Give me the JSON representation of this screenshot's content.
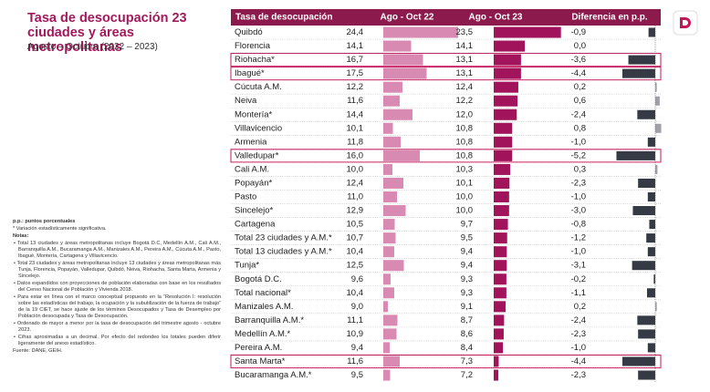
{
  "header": {
    "title": "Tasa de desocupación 23 ciudades y áreas metropolitanas",
    "subtitle": "Agosto – Octubre (2022 – 2023)"
  },
  "table": {
    "first_column": "Tasa de desocupación",
    "categories": [
      "Quibdó",
      "Florencia",
      "Riohacha*",
      "Ibagué*",
      "Cúcuta A.M.",
      "Neiva",
      "Montería*",
      "Villavicencio",
      "Armenia",
      "Valledupar*",
      "Cali A.M.",
      "Popayán*",
      "Pasto",
      "Sincelejo*",
      "Cartagena",
      "Total 23 ciudades y A.M.*",
      "Total 13 ciudades y A.M.*",
      "Tunja*",
      "Bogotá D.C.",
      "Total nacional*",
      "Manizales A.M.",
      "Barranquilla A.M.*",
      "Medellín A.M.*",
      "Pereira A.M.",
      "Santa Marta*",
      "Bucaramanga A.M.*"
    ],
    "highlighted": [
      false,
      false,
      true,
      true,
      false,
      false,
      false,
      false,
      false,
      true,
      false,
      false,
      false,
      false,
      false,
      false,
      false,
      false,
      false,
      false,
      false,
      false,
      false,
      false,
      true,
      false
    ],
    "series": [
      {
        "name": "Ago - Oct 22",
        "color": "#d98ab2",
        "xlim": [
          8,
          25
        ],
        "values": [
          24.4,
          14.1,
          16.7,
          17.5,
          12.2,
          11.6,
          14.4,
          10.1,
          11.8,
          16.0,
          10.0,
          12.4,
          11.0,
          12.9,
          10.5,
          10.7,
          10.4,
          12.5,
          9.6,
          10.4,
          9.0,
          11.1,
          10.9,
          9.4,
          11.6,
          9.5
        ],
        "value_labels": [
          "24,4",
          "14,1",
          "16,7",
          "17,5",
          "12,2",
          "11,6",
          "14,4",
          "10,1",
          "11,8",
          "16,0",
          "10,0",
          "12,4",
          "11,0",
          "12,9",
          "10,5",
          "10,7",
          "10,4",
          "12,5",
          "9,6",
          "10,4",
          "9,0",
          "11,1",
          "10,9",
          "9,4",
          "11,6",
          "9,5"
        ]
      },
      {
        "name": "Ago - Oct 23",
        "color": "#a1145c",
        "xlim": [
          6,
          25
        ],
        "values": [
          23.5,
          14.1,
          13.1,
          13.1,
          12.4,
          12.2,
          12.0,
          10.8,
          10.8,
          10.8,
          10.3,
          10.1,
          10.0,
          10.0,
          9.7,
          9.5,
          9.4,
          9.4,
          9.3,
          9.3,
          9.1,
          8.7,
          8.6,
          8.4,
          7.3,
          7.2
        ],
        "value_labels": [
          "23,5",
          "14,1",
          "13,1",
          "13,1",
          "12,4",
          "12,2",
          "12,0",
          "10,8",
          "10,8",
          "10,8",
          "10,3",
          "10,1",
          "10,0",
          "10,0",
          "9,7",
          "9,5",
          "9,4",
          "9,4",
          "9,3",
          "9,3",
          "9,1",
          "8,7",
          "8,6",
          "8,4",
          "7,3",
          "7,2"
        ]
      },
      {
        "name": "Diferencia en p.p.",
        "color": "#353a45",
        "positive_color": "#a0a0a8",
        "xlim": [
          -5.5,
          0.8
        ],
        "values": [
          -0.9,
          0.0,
          -3.6,
          -4.4,
          0.2,
          0.6,
          -2.4,
          0.8,
          -1.0,
          -5.2,
          0.3,
          -2.3,
          -1.0,
          -3.0,
          -0.8,
          -1.2,
          -1.0,
          -3.1,
          -0.2,
          -1.1,
          0.2,
          -2.4,
          -2.3,
          -1.0,
          -4.4,
          -2.3
        ],
        "value_labels": [
          "-0,9",
          "0,0",
          "-3,6",
          "-4,4",
          "0,2",
          "0,6",
          "-2,4",
          "0,8",
          "-1,0",
          "-5,2",
          "0,3",
          "-2,3",
          "-1,0",
          "-3,0",
          "-0,8",
          "-1,2",
          "-1,0",
          "-3,1",
          "-0,2",
          "-1,1",
          "0,2",
          "-2,4",
          "-2,3",
          "-1,0",
          "-4,4",
          "-2,3"
        ]
      }
    ]
  },
  "notes": {
    "pp": "p.p.: puntos porcentuales",
    "significance": "* Variación estadísticamente significativa.",
    "heading": "Notas:",
    "items": [
      "• Total 13 ciudades y áreas metropolitanas incluye Bogotá D.C, Medellín A.M., Cali A.M., Barranquilla A.M., Bucaramanga A.M., Manizales A.M., Pereira A.M., Cúcuta A.M., Pasto, Ibagué, Montería, Cartagena y Villavicencio.",
      "• Total 23 ciudades y áreas metropolitanas incluye 13 ciudades y áreas metropolitanas más Tunja, Florencia, Popayán, Valledupar, Quibdó, Neiva, Riohacha, Santa Marta, Armenia y Sincelejo.",
      "• Datos expandidos con proyecciones de población elaboradas con base en los resultados del Censo Nacional de Población y Vivienda 2018.",
      "• Para estar en línea con el marco conceptual propuesto en la “Resolución I: resolución sobre las estadísticas del trabajo, la ocupación y la subutilización de la fuerza de trabajo” de la 19 CIET, se hace ajuste de los términos Desocupados y Tasa de Desempleo por Población desocupada y Tasa de Desocupación.",
      "• Ordenado de mayor a menor por la tasa de desocupación del trimestre agosto - octubre 2023.",
      "• Cifras aproximadas a un decimal. Por efecto del redondeo los totales pueden diferir ligeramente del anexo estadístico."
    ],
    "source": "Fuente: DANE, GEIH."
  }
}
